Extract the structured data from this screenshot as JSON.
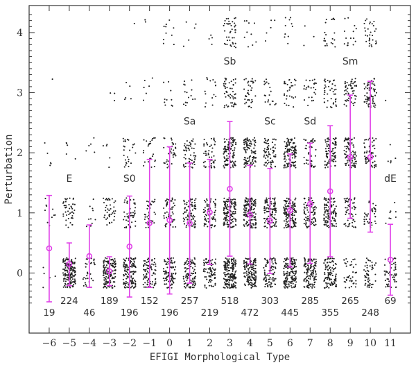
{
  "chart_data": {
    "type": "scatter",
    "xlabel": "EFIGI Morphological Type",
    "ylabel": "Perturbation",
    "xlim": [
      -7,
      12
    ],
    "ylim": [
      -1.0,
      4.45
    ],
    "x_ticks": [
      -6,
      -5,
      -4,
      -3,
      -2,
      -1,
      0,
      1,
      2,
      3,
      4,
      5,
      6,
      7,
      8,
      9,
      10,
      11
    ],
    "y_ticks": [
      0,
      1,
      2,
      3,
      4
    ],
    "y_levels": [
      0,
      1,
      2,
      3,
      4
    ],
    "mean_color": "#e040e8",
    "point_color": "#222222",
    "type_annotations": [
      {
        "text": "E",
        "x": -5,
        "y": 1.52
      },
      {
        "text": "S0",
        "x": -2,
        "y": 1.52
      },
      {
        "text": "Sa",
        "x": 1,
        "y": 2.47
      },
      {
        "text": "Sb",
        "x": 3,
        "y": 3.47
      },
      {
        "text": "Sc",
        "x": 5,
        "y": 2.47
      },
      {
        "text": "Sd",
        "x": 7,
        "y": 2.47
      },
      {
        "text": "Sm",
        "x": 9,
        "y": 3.47
      },
      {
        "text": "dE",
        "x": 11,
        "y": 1.52
      }
    ],
    "means": [
      {
        "x": -6,
        "mean": 0.41,
        "low": -0.48,
        "high": 1.29
      },
      {
        "x": -5,
        "mean": 0.15,
        "low": -0.21,
        "high": 0.5
      },
      {
        "x": -4,
        "mean": 0.28,
        "low": -0.24,
        "high": 0.8
      },
      {
        "x": -3,
        "mean": 0.03,
        "low": -0.21,
        "high": 0.27
      },
      {
        "x": -2,
        "mean": 0.44,
        "low": -0.4,
        "high": 1.28
      },
      {
        "x": -1,
        "mean": 0.83,
        "low": -0.24,
        "high": 1.89
      },
      {
        "x": 0,
        "mean": 0.88,
        "low": -0.35,
        "high": 2.1
      },
      {
        "x": 1,
        "mean": 0.83,
        "low": -0.17,
        "high": 1.83
      },
      {
        "x": 2,
        "mean": 1.01,
        "low": 0.14,
        "high": 1.89
      },
      {
        "x": 3,
        "mean": 1.4,
        "low": 0.28,
        "high": 2.52
      },
      {
        "x": 4,
        "mean": 0.97,
        "low": 0.15,
        "high": 1.79
      },
      {
        "x": 5,
        "mean": 0.87,
        "low": -0.01,
        "high": 1.74
      },
      {
        "x": 6,
        "mean": 1.04,
        "low": 0.1,
        "high": 1.98
      },
      {
        "x": 7,
        "mean": 1.15,
        "low": 0.16,
        "high": 2.16
      },
      {
        "x": 8,
        "mean": 1.36,
        "low": 0.27,
        "high": 2.45
      },
      {
        "x": 9,
        "mean": 1.93,
        "low": 0.91,
        "high": 2.96
      },
      {
        "x": 10,
        "mean": 1.93,
        "low": 0.68,
        "high": 3.19
      },
      {
        "x": 11,
        "mean": 0.22,
        "low": -0.37,
        "high": 0.81
      }
    ],
    "counts": [
      {
        "x": -6,
        "n": 19,
        "row": 2
      },
      {
        "x": -5,
        "n": 224,
        "row": 1
      },
      {
        "x": -4,
        "n": 46,
        "row": 2
      },
      {
        "x": -3,
        "n": 189,
        "row": 1
      },
      {
        "x": -2,
        "n": 196,
        "row": 2
      },
      {
        "x": -1,
        "n": 152,
        "row": 1
      },
      {
        "x": 0,
        "n": 196,
        "row": 2
      },
      {
        "x": 1,
        "n": 257,
        "row": 1
      },
      {
        "x": 2,
        "n": 219,
        "row": 2
      },
      {
        "x": 3,
        "n": 518,
        "row": 1
      },
      {
        "x": 4,
        "n": 472,
        "row": 2
      },
      {
        "x": 5,
        "n": 303,
        "row": 1
      },
      {
        "x": 6,
        "n": 445,
        "row": 2
      },
      {
        "x": 7,
        "n": 285,
        "row": 1
      },
      {
        "x": 8,
        "n": 355,
        "row": 2
      },
      {
        "x": 9,
        "n": 265,
        "row": 1
      },
      {
        "x": 10,
        "n": 248,
        "row": 2
      },
      {
        "x": 11,
        "n": 69,
        "row": 1
      }
    ],
    "point_density": {
      "-6": [
        5,
        10,
        5,
        1,
        0
      ],
      "-5": [
        170,
        45,
        5,
        0,
        0
      ],
      "-4": [
        30,
        10,
        5,
        0,
        0
      ],
      "-3": [
        140,
        40,
        5,
        3,
        0
      ],
      "-2": [
        120,
        45,
        25,
        5,
        1
      ],
      "-1": [
        80,
        40,
        25,
        6,
        2
      ],
      "0": [
        90,
        50,
        35,
        10,
        10
      ],
      "1": [
        100,
        80,
        55,
        15,
        5
      ],
      "2": [
        75,
        70,
        50,
        15,
        4
      ],
      "3": [
        180,
        140,
        110,
        50,
        40
      ],
      "4": [
        150,
        155,
        100,
        35,
        10
      ],
      "5": [
        90,
        110,
        70,
        20,
        5
      ],
      "6": [
        160,
        130,
        110,
        30,
        10
      ],
      "7": [
        120,
        85,
        45,
        25,
        3
      ],
      "8": [
        100,
        110,
        85,
        40,
        20
      ],
      "9": [
        40,
        55,
        90,
        55,
        15
      ],
      "10": [
        50,
        40,
        60,
        65,
        30
      ],
      "11": [
        55,
        8,
        5,
        1,
        0
      ]
    }
  }
}
